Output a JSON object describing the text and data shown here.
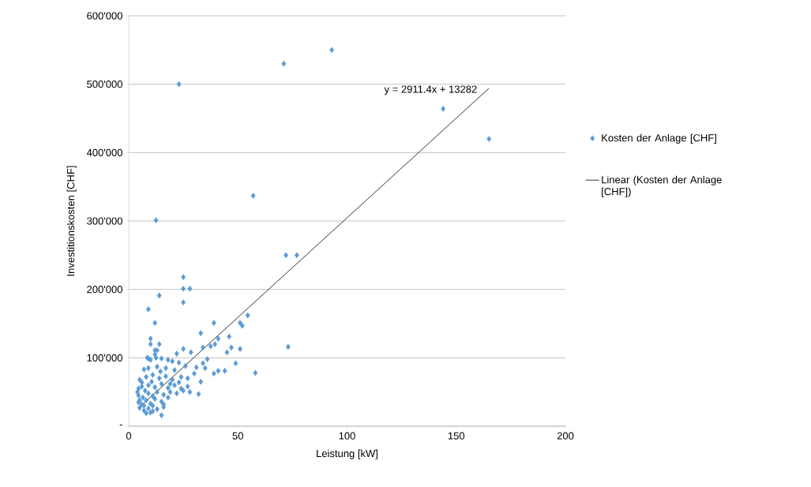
{
  "chart_data": {
    "type": "scatter",
    "xlabel": "Leistung [kW]",
    "ylabel": "Investitionskosten [CHF]",
    "xlim": [
      0,
      200
    ],
    "ylim": [
      0,
      600000
    ],
    "xticks": [
      0,
      50,
      100,
      150,
      200
    ],
    "yticks": [
      {
        "value": 0,
        "label": "-"
      },
      {
        "value": 100000,
        "label": "100'000"
      },
      {
        "value": 200000,
        "label": "200'000"
      },
      {
        "value": 300000,
        "label": "300'000"
      },
      {
        "value": 400000,
        "label": "400'000"
      },
      {
        "value": 500000,
        "label": "500'000"
      },
      {
        "value": 600000,
        "label": "600'000"
      }
    ],
    "grid": "y",
    "legend": "right",
    "annotations": [
      "y = 2911.4x + 13282"
    ],
    "series": [
      {
        "name": "Kosten der Anlage [CHF]",
        "color": "#5b9bd5",
        "marker": "diamond",
        "x": [
          23,
          71,
          93,
          144,
          165,
          57,
          12.5,
          72,
          77,
          25,
          25,
          28,
          14,
          25,
          9,
          12,
          39,
          54.5,
          51,
          52,
          33,
          10,
          10,
          14,
          41,
          46,
          34,
          37.5,
          39.5,
          47,
          51,
          45,
          73,
          12,
          13,
          25,
          22,
          28.5,
          9,
          36,
          49,
          58,
          39,
          41,
          44,
          31,
          34,
          35,
          33,
          32,
          30,
          15,
          10,
          12.5,
          15,
          18,
          20,
          23,
          7,
          9,
          13,
          17,
          21,
          26,
          5,
          8,
          11,
          14,
          17,
          20,
          24,
          27,
          4.5,
          6,
          9,
          12,
          15,
          18,
          21,
          24,
          27,
          4.5,
          6.5,
          9,
          11,
          13,
          16,
          19,
          22,
          25,
          28,
          4.5,
          6,
          8,
          10,
          12,
          15,
          18,
          5,
          7,
          9,
          11,
          13,
          16,
          8,
          10,
          4,
          5,
          8.5,
          12,
          6,
          7.5,
          10.5,
          14.5,
          19,
          23,
          7,
          11,
          16
        ],
        "values": [
          500000,
          530000,
          550000,
          464000,
          420000,
          337000,
          301000,
          250000,
          250000,
          218000,
          201000,
          201000,
          191000,
          181000,
          171000,
          151000,
          151000,
          162000,
          151000,
          147000,
          136000,
          128000,
          120000,
          120000,
          128000,
          131000,
          115000,
          117000,
          120000,
          115000,
          113000,
          108000,
          116000,
          111000,
          111000,
          113000,
          106000,
          108000,
          99000,
          98000,
          92000,
          78000,
          77000,
          81000,
          81000,
          86000,
          92000,
          85000,
          65000,
          47000,
          77000,
          16000,
          97000,
          100000,
          99000,
          97000,
          95000,
          93000,
          83000,
          85000,
          87000,
          85000,
          82000,
          88000,
          68000,
          72000,
          75000,
          70000,
          73000,
          68000,
          72000,
          70000,
          55000,
          58000,
          60000,
          57000,
          62000,
          56000,
          60000,
          55000,
          58000,
          45000,
          42000,
          48000,
          44000,
          50000,
          46000,
          50000,
          48000,
          52000,
          50000,
          35000,
          32000,
          38000,
          33000,
          40000,
          36000,
          42000,
          27000,
          23000,
          26000,
          22000,
          25000,
          28000,
          19000,
          20000,
          50000,
          38000,
          100000,
          105000,
          64000,
          52000,
          65000,
          80000,
          62000,
          64000,
          30000,
          30000,
          32000
        ]
      },
      {
        "name": "Linear (Kosten der Anlage [CHF])",
        "type": "line",
        "color": "#000000",
        "marker": "none",
        "x": [
          4.3,
          165
        ],
        "values": [
          26000,
          494000
        ]
      }
    ]
  }
}
